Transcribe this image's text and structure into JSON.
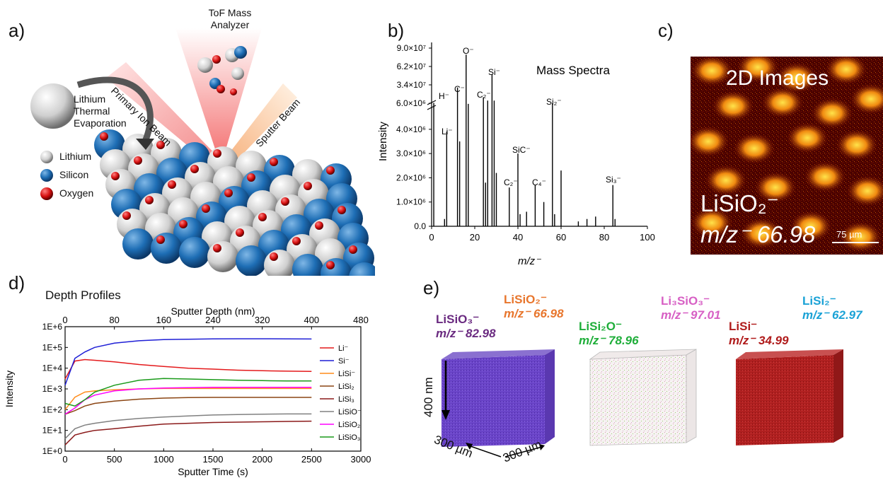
{
  "panels": {
    "a": {
      "label": "a)",
      "analyzer": [
        "ToF Mass",
        "Analyzer"
      ],
      "primary_beam": "Primary Ion Beam",
      "sputter_beam": "Sputter Beam",
      "evaporation": [
        "Lithium",
        "Thermal",
        "Evaporation"
      ],
      "legend": [
        {
          "name": "Lithium",
          "color": "#d9d9d9"
        },
        {
          "name": "Silicon",
          "color": "#1e6eb5"
        },
        {
          "name": "Oxygen",
          "color": "#d40f0f"
        }
      ]
    },
    "b": {
      "label": "b)",
      "title": "Mass Spectra",
      "ylabel": "Intensity",
      "xlabel": "m/z⁻",
      "yticks_upper": [
        "9.0×10⁷",
        "6.2×10⁷",
        "3.4×10⁷",
        "6.0×10⁶"
      ],
      "yticks_lower": [
        "4.0×10⁶",
        "3.0×10⁶",
        "2.0×10⁶",
        "1.0×10⁶",
        "0.0"
      ],
      "xticks": [
        "0",
        "20",
        "40",
        "60",
        "80",
        "100"
      ],
      "peak_labels": [
        "H⁻",
        "Li⁻",
        "C⁻",
        "O⁻",
        "C₂⁻",
        "Si⁻",
        "C₂⁻",
        "SiC⁻",
        "C₄⁻",
        "Si₂⁻",
        "Si₃⁻"
      ]
    },
    "c": {
      "label": "c)",
      "title": "2D Images",
      "ion": "LiSiO₂⁻",
      "mz": "m/z⁻ 66.98",
      "scale": "75 µm"
    },
    "d": {
      "label": "d)",
      "title": "Depth Profiles",
      "top_axis_label": "Sputter Depth (nm)",
      "top_ticks": [
        "0",
        "80",
        "160",
        "240",
        "320",
        "400",
        "480"
      ],
      "xlabel": "Sputter Time (s)",
      "xticks": [
        "0",
        "500",
        "1000",
        "1500",
        "2000",
        "2500",
        "3000"
      ],
      "ylabel": "Intensity",
      "yticks": [
        "1E+6",
        "1E+5",
        "1E+4",
        "1E+3",
        "1E+2",
        "1E+1",
        "1E+0"
      ],
      "legend": [
        "Li⁻",
        "Si⁻",
        "LiSi⁻",
        "LiSi₂",
        "LiSi₃",
        "LiSiO⁻",
        "LiSiO₂",
        "LiSiO₃"
      ]
    },
    "e": {
      "label": "e)",
      "depth": "400 nm",
      "width1": "300 µm",
      "width2": "300 µm",
      "ions": [
        {
          "name": "LiSiO₃⁻",
          "mz": "m/z⁻ 82.98",
          "color": "#6a2a80"
        },
        {
          "name": "LiSiO₂⁻",
          "mz": "m/z⁻ 66.98",
          "color": "#e8762d"
        },
        {
          "name": "LiSi₂O⁻",
          "mz": "m/z⁻ 78.96",
          "color": "#1fae3a"
        },
        {
          "name": "Li₃SiO₃⁻",
          "mz": "m/z⁻ 97.01",
          "color": "#d75fc4"
        },
        {
          "name": "LiSi⁻",
          "mz": "m/z⁻ 34.99",
          "color": "#b01c1c"
        },
        {
          "name": "LiSi₂⁻",
          "mz": "m/z⁻ 62.97",
          "color": "#1aa2d6"
        }
      ]
    }
  },
  "chart_data": [
    {
      "type": "bar",
      "title": "Mass Spectra",
      "xlabel": "m/z⁻",
      "ylabel": "Intensity",
      "xlim": [
        0,
        100
      ],
      "broken_axis": true,
      "peaks": [
        {
          "x": 1,
          "y": 6500000.0
        },
        {
          "x": 6,
          "y": 300000.0
        },
        {
          "x": 7,
          "y": 3900000.0
        },
        {
          "x": 12,
          "y": 30000000.0
        },
        {
          "x": 13,
          "y": 3500000.0
        },
        {
          "x": 16,
          "y": 80000000.0
        },
        {
          "x": 17,
          "y": 5000000.0
        },
        {
          "x": 24,
          "y": 15000000.0
        },
        {
          "x": 25,
          "y": 1800000.0
        },
        {
          "x": 26,
          "y": 10000000.0
        },
        {
          "x": 28,
          "y": 50000000.0
        },
        {
          "x": 29,
          "y": 10000000.0
        },
        {
          "x": 30,
          "y": 2200000.0
        },
        {
          "x": 36,
          "y": 1600000.0
        },
        {
          "x": 40,
          "y": 3000000.0
        },
        {
          "x": 41,
          "y": 500000.0
        },
        {
          "x": 44,
          "y": 600000.0
        },
        {
          "x": 48,
          "y": 1700000.0
        },
        {
          "x": 52,
          "y": 1000000.0
        },
        {
          "x": 56,
          "y": 5900000.0
        },
        {
          "x": 57,
          "y": 500000.0
        },
        {
          "x": 60,
          "y": 2300000.0
        },
        {
          "x": 68,
          "y": 200000.0
        },
        {
          "x": 72,
          "y": 300000.0
        },
        {
          "x": 76,
          "y": 400000.0
        },
        {
          "x": 84,
          "y": 1700000.0
        },
        {
          "x": 85,
          "y": 300000.0
        }
      ]
    },
    {
      "type": "line",
      "title": "Depth Profiles",
      "xlabel": "Sputter Time (s)",
      "ylabel": "Intensity",
      "xlim": [
        0,
        3000
      ],
      "ylim": [
        1,
        1000000
      ],
      "yscale": "log",
      "x": [
        0,
        100,
        200,
        300,
        500,
        750,
        1000,
        1250,
        1500,
        1750,
        2000,
        2250,
        2500
      ],
      "series": [
        {
          "name": "Li⁻",
          "color": "#e41a1c",
          "values": [
            3000,
            22000,
            26000,
            24000,
            20000,
            15000,
            12000,
            10000,
            9000,
            8000,
            7500,
            7200,
            7000
          ]
        },
        {
          "name": "Si⁻",
          "color": "#1f1fd6",
          "values": [
            1500,
            30000,
            60000,
            100000,
            160000,
            210000,
            240000,
            250000,
            260000,
            262000,
            262000,
            260000,
            255000
          ]
        },
        {
          "name": "LiSi⁻",
          "color": "#ff8c1a",
          "values": [
            100,
            400,
            700,
            800,
            900,
            1000,
            1050,
            1050,
            1050,
            1050,
            1050,
            1050,
            1050
          ]
        },
        {
          "name": "LiSi₂",
          "color": "#8b4513",
          "values": [
            60,
            90,
            150,
            200,
            260,
            320,
            360,
            380,
            390,
            390,
            390,
            390,
            390
          ]
        },
        {
          "name": "LiSi₃",
          "color": "#8b1a1a",
          "values": [
            2,
            6,
            8,
            10,
            12,
            16,
            20,
            22,
            24,
            25,
            26,
            27,
            28
          ]
        },
        {
          "name": "LiSiO⁻",
          "color": "#808080",
          "values": [
            4,
            12,
            18,
            22,
            30,
            38,
            44,
            50,
            55,
            58,
            60,
            62,
            62
          ]
        },
        {
          "name": "LiSiO₂",
          "color": "#ff00ff",
          "values": [
            60,
            120,
            300,
            500,
            800,
            1000,
            1100,
            1150,
            1200,
            1200,
            1200,
            1200,
            1200
          ]
        },
        {
          "name": "LiSiO₃",
          "color": "#1a9a1a",
          "values": [
            200,
            150,
            300,
            700,
            1500,
            2600,
            3200,
            3000,
            2800,
            2600,
            2500,
            2400,
            2400
          ]
        }
      ]
    }
  ]
}
